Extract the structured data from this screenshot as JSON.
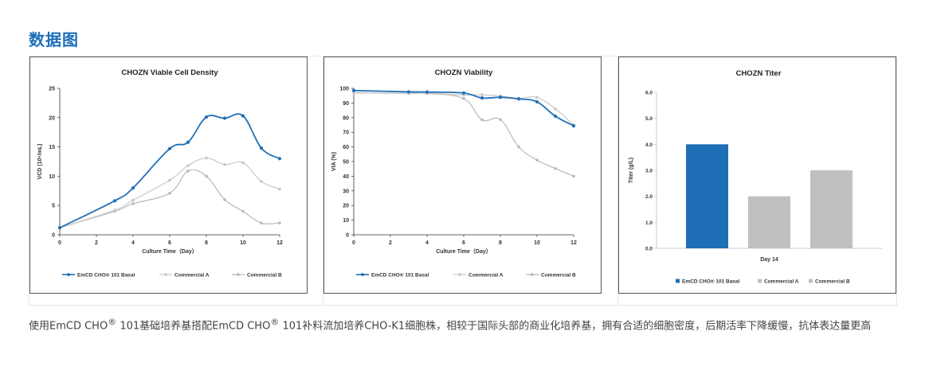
{
  "section_title": "数据图",
  "colors": {
    "emcd": "#1f6fb6",
    "commercial_a": "#c8c8c8",
    "commercial_b": "#b9b9b9",
    "bar_a": "#c0c0c0",
    "bar_b": "#c0c0c0"
  },
  "caption": {
    "part1": "使用EmCD CHO",
    "reg1": "®",
    "part2": " 101基础培养基搭配EmCD CHO",
    "reg2": "®",
    "part3": " 101补料流加培养CHO-K1细胞株，相较于国际头部的商业化培养基，拥有合适的细胞密度，后期活率下降缓慢，抗体表达量更高"
  },
  "chart_data": [
    {
      "type": "line",
      "title": "CHOZN Viable Cell Density",
      "xlabel": "Culture Time（Day）",
      "ylabel": "VCD (10⁶/mL)",
      "xlim": [
        0,
        12
      ],
      "ylim": [
        0,
        25
      ],
      "xticks": [
        "0",
        "2",
        "4",
        "6",
        "8",
        "10",
        "12"
      ],
      "yticks": [
        "0",
        "5",
        "10",
        "15",
        "20",
        "25"
      ],
      "legend": "bottom",
      "series": [
        {
          "name": "EmCD CHO® 101 Basal",
          "x": [
            0,
            3,
            4,
            6,
            7,
            8,
            9,
            10,
            11,
            12
          ],
          "y": [
            1.2,
            5.8,
            8.0,
            14.7,
            15.8,
            20.1,
            19.9,
            20.3,
            14.8,
            13.0
          ]
        },
        {
          "name": "Commercial A",
          "x": [
            0,
            3,
            4,
            6,
            7,
            8,
            9,
            10,
            11,
            12
          ],
          "y": [
            1.2,
            4.2,
            5.9,
            9.3,
            11.8,
            13.1,
            12.0,
            12.3,
            9.1,
            7.8
          ]
        },
        {
          "name": "Commercial B",
          "x": [
            0,
            3,
            4,
            6,
            7,
            8,
            9,
            10,
            11,
            12
          ],
          "y": [
            1.2,
            4.0,
            5.3,
            7.1,
            10.9,
            10.0,
            6.0,
            4.0,
            2.0,
            2.0
          ]
        }
      ]
    },
    {
      "type": "line",
      "title": "CHOZN  Viability",
      "xlabel": "Culture Time（Day）",
      "ylabel": "VIA (%)",
      "xlim": [
        0,
        12
      ],
      "ylim": [
        0,
        100
      ],
      "xticks": [
        "0",
        "2",
        "4",
        "6",
        "8",
        "10",
        "12"
      ],
      "yticks": [
        "0",
        "10",
        "20",
        "30",
        "40",
        "50",
        "60",
        "70",
        "80",
        "90",
        "100"
      ],
      "legend": "bottom",
      "series": [
        {
          "name": "EmCD CHO® 101 Basal",
          "x": [
            0,
            3,
            4,
            6,
            7,
            8,
            9,
            10,
            11,
            12
          ],
          "y": [
            98.5,
            97.6,
            97.5,
            96.8,
            93.4,
            93.9,
            92.8,
            90.8,
            81.0,
            74.4
          ]
        },
        {
          "name": "Commercial A",
          "x": [
            0,
            3,
            4,
            6,
            7,
            8,
            9,
            10,
            11,
            12
          ],
          "y": [
            96.8,
            96.6,
            96.9,
            95.4,
            95.6,
            94.8,
            93.2,
            93.8,
            86.0,
            75.0
          ]
        },
        {
          "name": "Commercial B",
          "x": [
            0,
            3,
            4,
            6,
            7,
            8,
            9,
            10,
            11,
            12
          ],
          "y": [
            97.0,
            96.5,
            96.5,
            93.0,
            78.5,
            78.7,
            60.0,
            51.0,
            45.3,
            40.0
          ]
        }
      ]
    },
    {
      "type": "bar",
      "title": "CHOZN Titer",
      "xlabel": "Day 14",
      "ylabel": "Titer (g/L)",
      "ylim": [
        0,
        6
      ],
      "yticks": [
        "0.0",
        "1.0",
        "2.0",
        "3.0",
        "4.0",
        "5.0",
        "6.0"
      ],
      "legend": "bottom",
      "categories": [
        "Day 14"
      ],
      "series": [
        {
          "name": "EmCD CHO® 101 Basal",
          "values": [
            4.0
          ]
        },
        {
          "name": "Commercial A",
          "values": [
            2.0
          ]
        },
        {
          "name": "Commercial B",
          "values": [
            3.0
          ]
        }
      ]
    }
  ]
}
